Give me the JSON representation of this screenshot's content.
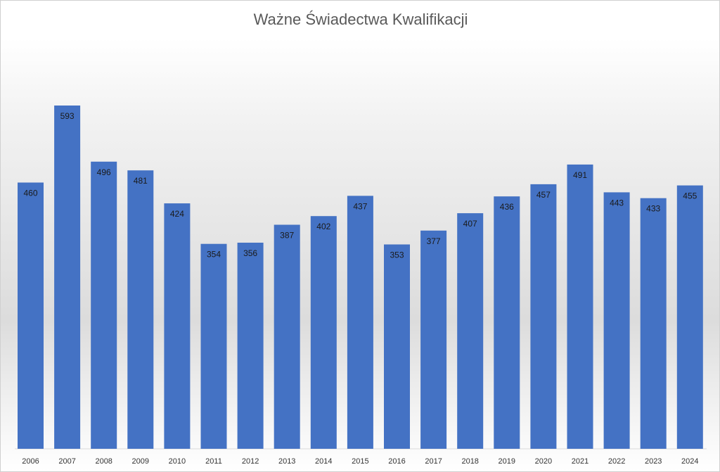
{
  "chart_data": {
    "type": "bar",
    "title": "Ważne Świadectwa Kwalifikacji",
    "xlabel": "",
    "ylabel": "",
    "ylim": [
      0,
      640
    ],
    "grid": false,
    "legend": "none",
    "bar_color": "#4472C4",
    "categories": [
      "2006",
      "2007",
      "2008",
      "2009",
      "2010",
      "2011",
      "2012",
      "2013",
      "2014",
      "2015",
      "2016",
      "2017",
      "2018",
      "2019",
      "2020",
      "2021",
      "2022",
      "2023",
      "2024"
    ],
    "values": [
      460,
      593,
      496,
      481,
      424,
      354,
      356,
      387,
      402,
      437,
      353,
      377,
      407,
      436,
      457,
      491,
      443,
      433,
      455
    ],
    "data_labels": [
      "460",
      "593",
      "496",
      "481",
      "424",
      "354",
      "356",
      "387",
      "402",
      "437",
      "353",
      "377",
      "407",
      "436",
      "457",
      "491",
      "443",
      "433",
      "455"
    ]
  }
}
